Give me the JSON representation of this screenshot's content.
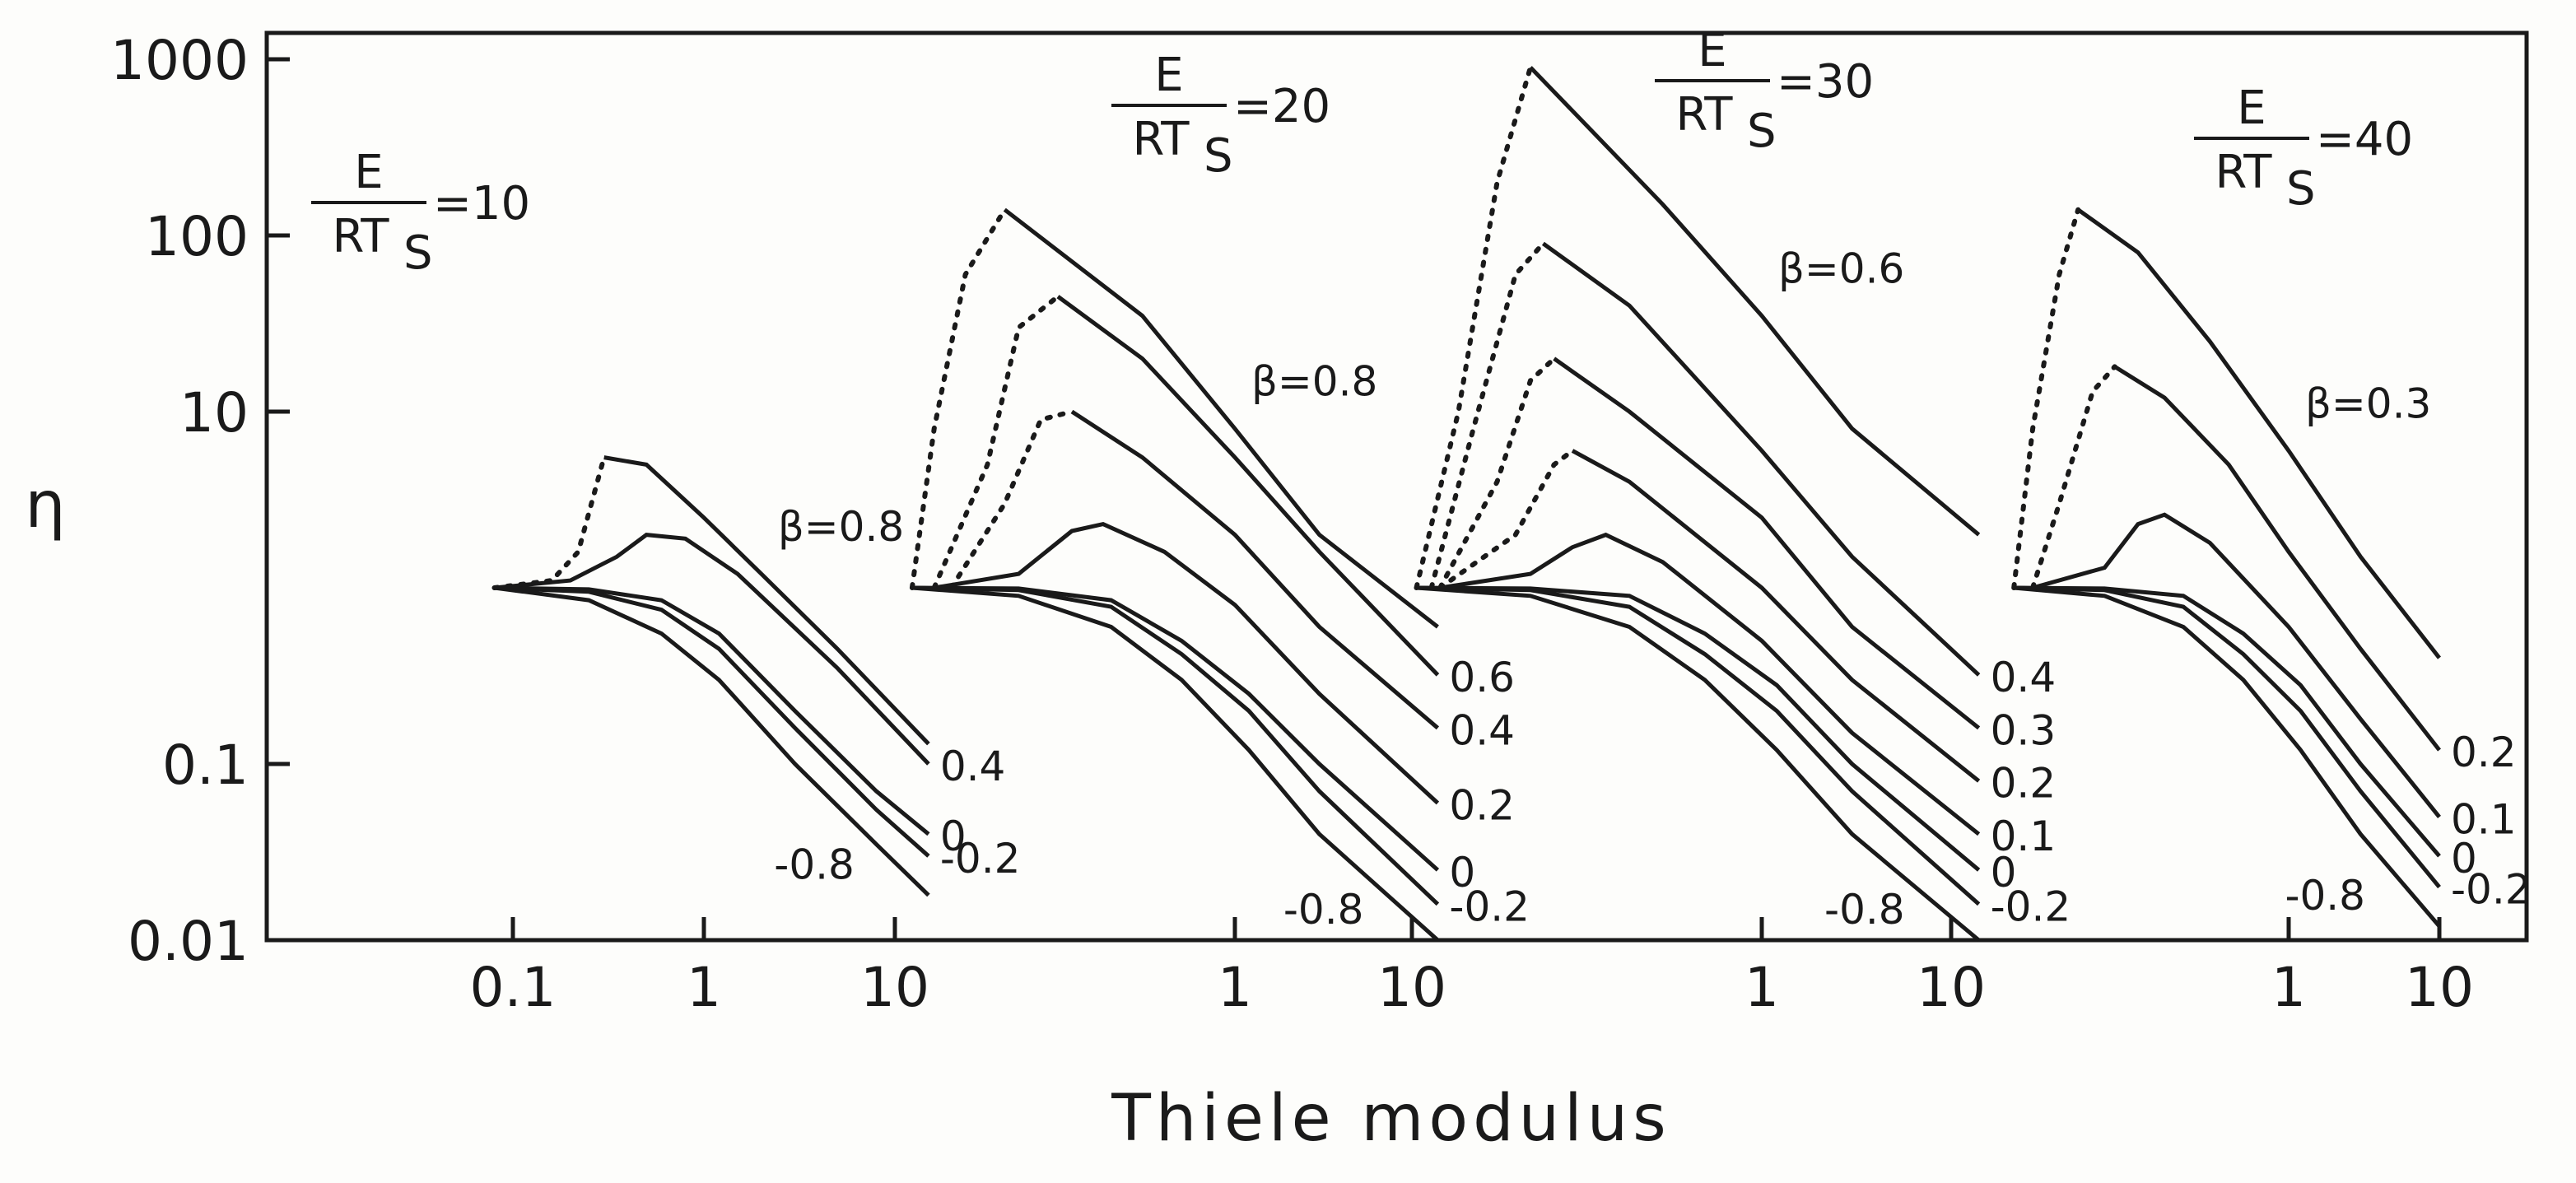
{
  "chart_data": {
    "type": "line",
    "xlabel": "Thiele modulus",
    "ylabel": "η",
    "yscale": "log",
    "xscale": "log",
    "ylim": [
      0.01,
      1000
    ],
    "y_ticks": [
      "1000",
      "100",
      "10",
      "0.1",
      "0.01"
    ],
    "grid": false,
    "panels": [
      {
        "param_num": "E",
        "param_den": "RT",
        "param_sub": "S",
        "param_value": "=10",
        "x_ticks": [
          "0.1",
          "1",
          "10"
        ],
        "series": [
          {
            "name": "β=0.8",
            "label": "β=0.8",
            "x": [
              0.08,
              0.16,
              0.22,
              0.3,
              0.5,
              1,
              2,
              5,
              15
            ],
            "y": [
              1,
              1.1,
              1.6,
              5.5,
              5.0,
              2.5,
              1.2,
              0.45,
              0.13
            ]
          },
          {
            "name": "0.4",
            "label": "0.4",
            "x": [
              0.08,
              0.2,
              0.35,
              0.5,
              0.8,
              1.5,
              5,
              15
            ],
            "y": [
              1,
              1.1,
              1.5,
              2.0,
              1.9,
              1.2,
              0.35,
              0.1
            ]
          },
          {
            "name": "0",
            "label": "0",
            "x": [
              0.08,
              0.25,
              0.6,
              1.2,
              3,
              8,
              15
            ],
            "y": [
              1,
              0.98,
              0.85,
              0.55,
              0.2,
              0.07,
              0.04
            ]
          },
          {
            "name": "-0.2",
            "label": "-0.2",
            "x": [
              0.08,
              0.25,
              0.6,
              1.2,
              3,
              8,
              15
            ],
            "y": [
              1,
              0.95,
              0.75,
              0.45,
              0.16,
              0.055,
              0.03
            ]
          },
          {
            "name": "-0.8",
            "label": "-0.8",
            "x": [
              0.08,
              0.25,
              0.6,
              1.2,
              3,
              8,
              15
            ],
            "y": [
              1,
              0.85,
              0.55,
              0.3,
              0.1,
              0.035,
              0.018
            ]
          }
        ]
      },
      {
        "param_num": "E",
        "param_den": "RT",
        "param_sub": "S",
        "param_value": "=20",
        "x_ticks": [
          "1",
          "10"
        ],
        "series": [
          {
            "name": "β=0.8",
            "label": "β=0.8",
            "x": [
              0.015,
              0.02,
              0.03,
              0.05,
              0.3,
              1,
              3,
              14
            ],
            "y": [
              1,
              8,
              60,
              140,
              35,
              8,
              2,
              0.6
            ]
          },
          {
            "name": "0.6",
            "label": "0.6",
            "x": [
              0.02,
              0.04,
              0.06,
              0.1,
              0.3,
              1,
              3,
              14
            ],
            "y": [
              1,
              5,
              30,
              45,
              20,
              5.5,
              1.6,
              0.32
            ]
          },
          {
            "name": "0.4",
            "label": "0.4",
            "x": [
              0.025,
              0.05,
              0.08,
              0.12,
              0.3,
              1,
              3,
              14
            ],
            "y": [
              1,
              3,
              9,
              10,
              5.5,
              2.0,
              0.6,
              0.16
            ]
          },
          {
            "name": "0.2",
            "label": "0.2",
            "x": [
              0.02,
              0.06,
              0.12,
              0.18,
              0.4,
              1,
              3,
              14
            ],
            "y": [
              1,
              1.2,
              2.1,
              2.3,
              1.6,
              0.8,
              0.25,
              0.06
            ]
          },
          {
            "name": "0",
            "label": "0",
            "x": [
              0.015,
              0.06,
              0.2,
              0.5,
              1.2,
              3,
              14
            ],
            "y": [
              1,
              0.99,
              0.85,
              0.5,
              0.25,
              0.1,
              0.025
            ]
          },
          {
            "name": "-0.2",
            "label": "-0.2",
            "x": [
              0.015,
              0.06,
              0.2,
              0.5,
              1.2,
              3,
              14
            ],
            "y": [
              1,
              0.97,
              0.78,
              0.42,
              0.2,
              0.07,
              0.016
            ]
          },
          {
            "name": "-0.8",
            "label": "-0.8",
            "x": [
              0.015,
              0.06,
              0.2,
              0.5,
              1.2,
              3,
              14
            ],
            "y": [
              1,
              0.9,
              0.6,
              0.3,
              0.12,
              0.04,
              0.01
            ]
          }
        ]
      },
      {
        "param_num": "E",
        "param_den": "RT",
        "param_sub": "S",
        "param_value": "=30",
        "x_ticks": [
          "1",
          "10"
        ],
        "series": [
          {
            "name": "β=0.6",
            "label": "β=0.6",
            "x": [
              0.015,
              0.025,
              0.04,
              0.06,
              0.3,
              1,
              3,
              14
            ],
            "y": [
              1,
              10,
              200,
              900,
              150,
              35,
              8,
              2.0
            ]
          },
          {
            "name": "0.4",
            "label": "0.4",
            "x": [
              0.018,
              0.03,
              0.05,
              0.07,
              0.2,
              1,
              3,
              14
            ],
            "y": [
              1,
              8,
              60,
              90,
              40,
              6,
              1.5,
              0.32
            ]
          },
          {
            "name": "0.3",
            "label": "0.3",
            "x": [
              0.02,
              0.04,
              0.06,
              0.08,
              0.2,
              1,
              3,
              14
            ],
            "y": [
              1,
              4,
              15,
              20,
              10,
              2.5,
              0.6,
              0.16
            ]
          },
          {
            "name": "0.2",
            "label": "0.2",
            "x": [
              0.02,
              0.05,
              0.08,
              0.1,
              0.2,
              1,
              3,
              14
            ],
            "y": [
              1,
              2,
              5,
              6,
              4,
              1.0,
              0.3,
              0.08
            ]
          },
          {
            "name": "0.1",
            "label": "0.1",
            "x": [
              0.02,
              0.06,
              0.1,
              0.15,
              0.3,
              1,
              3,
              14
            ],
            "y": [
              1,
              1.2,
              1.7,
              2.0,
              1.4,
              0.5,
              0.15,
              0.04
            ]
          },
          {
            "name": "0",
            "label": "0",
            "x": [
              0.015,
              0.06,
              0.2,
              0.5,
              1.2,
              3,
              14
            ],
            "y": [
              1,
              0.99,
              0.9,
              0.55,
              0.28,
              0.1,
              0.025
            ]
          },
          {
            "name": "-0.2",
            "label": "-0.2",
            "x": [
              0.015,
              0.06,
              0.2,
              0.5,
              1.2,
              3,
              14
            ],
            "y": [
              1,
              0.97,
              0.78,
              0.42,
              0.2,
              0.07,
              0.016
            ]
          },
          {
            "name": "-0.8",
            "label": "-0.8",
            "x": [
              0.015,
              0.06,
              0.2,
              0.5,
              1.2,
              3,
              14
            ],
            "y": [
              1,
              0.9,
              0.6,
              0.3,
              0.12,
              0.04,
              0.01
            ]
          }
        ]
      },
      {
        "param_num": "E",
        "param_den": "RT",
        "param_sub": "S",
        "param_value": "=40",
        "x_ticks": [
          "1",
          "10"
        ],
        "series": [
          {
            "name": "β=0.3",
            "label": "β=0.3",
            "x": [
              0.015,
              0.02,
              0.03,
              0.04,
              0.1,
              0.3,
              1,
              3,
              10
            ],
            "y": [
              1,
              8,
              60,
              140,
              80,
              25,
              6,
              1.5,
              0.4
            ]
          },
          {
            "name": "0.2",
            "label": "0.2",
            "x": [
              0.02,
              0.03,
              0.05,
              0.07,
              0.15,
              0.4,
              1,
              3,
              10
            ],
            "y": [
              1,
              3,
              13,
              18,
              12,
              5,
              1.6,
              0.45,
              0.12
            ]
          },
          {
            "name": "0.1",
            "label": "0.1",
            "x": [
              0.02,
              0.06,
              0.1,
              0.15,
              0.3,
              1,
              3,
              10
            ],
            "y": [
              1,
              1.3,
              2.3,
              2.6,
              1.8,
              0.6,
              0.18,
              0.05
            ]
          },
          {
            "name": "0",
            "label": "0",
            "x": [
              0.015,
              0.06,
              0.2,
              0.5,
              1.2,
              3,
              10
            ],
            "y": [
              1,
              0.99,
              0.9,
              0.55,
              0.28,
              0.1,
              0.03
            ]
          },
          {
            "name": "-0.2",
            "label": "-0.2",
            "x": [
              0.015,
              0.06,
              0.2,
              0.5,
              1.2,
              3,
              10
            ],
            "y": [
              1,
              0.97,
              0.78,
              0.42,
              0.2,
              0.07,
              0.02
            ]
          },
          {
            "name": "-0.8",
            "label": "-0.8",
            "x": [
              0.015,
              0.06,
              0.2,
              0.5,
              1.2,
              3,
              10
            ],
            "y": [
              1,
              0.9,
              0.6,
              0.3,
              0.12,
              0.04,
              0.012
            ]
          }
        ]
      }
    ]
  }
}
